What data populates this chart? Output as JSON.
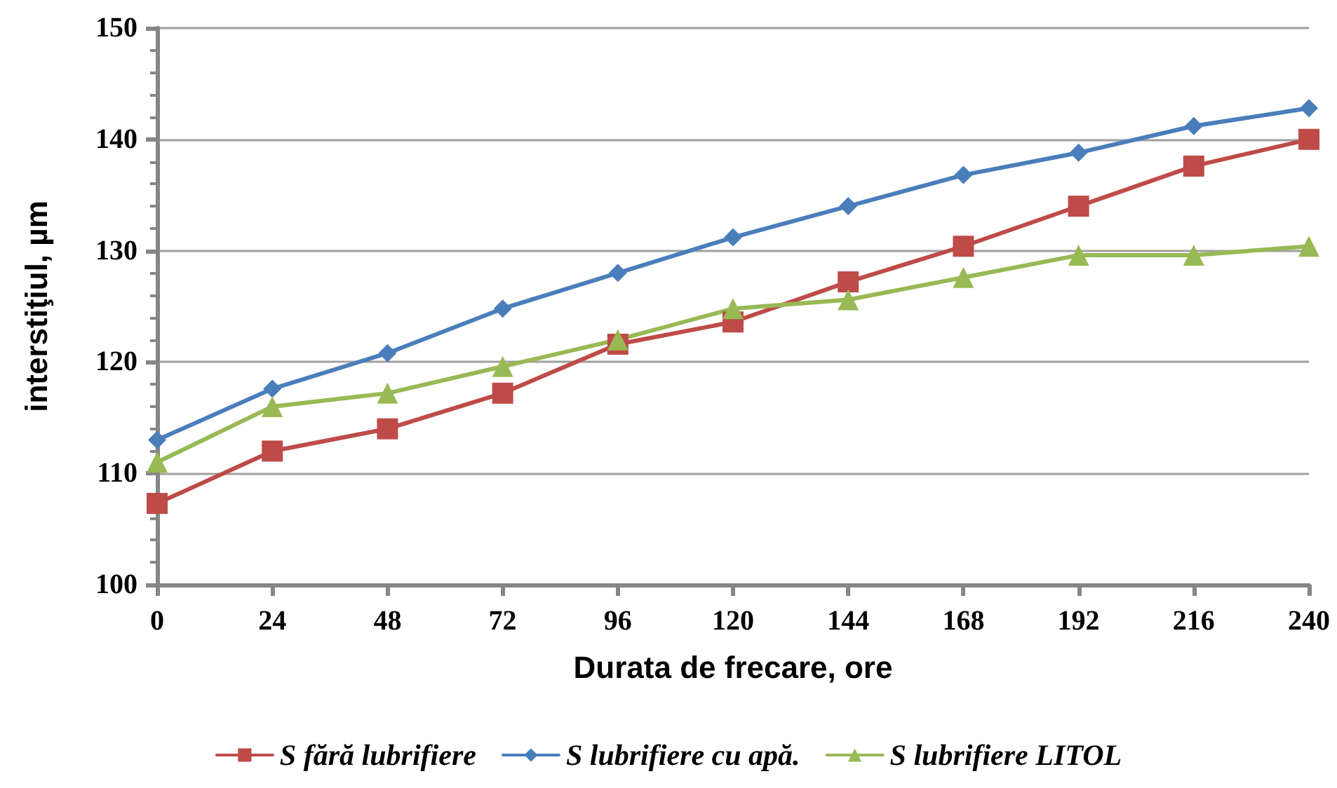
{
  "chart_data": {
    "type": "line",
    "xlabel": "Durata de frecare, ore",
    "ylabel": "interstiţiul, µm",
    "x": [
      0,
      24,
      48,
      72,
      96,
      120,
      144,
      168,
      192,
      216,
      240
    ],
    "series": [
      {
        "name": "S fără lubrifiere",
        "color": "#be4b48",
        "marker": "square",
        "values": [
          107.3,
          112,
          114,
          117.2,
          121.6,
          123.6,
          127.2,
          130.4,
          134,
          137.6,
          140
        ]
      },
      {
        "name": "S lubrifiere cu apă.",
        "color": "#4a7ebb",
        "marker": "diamond",
        "values": [
          113,
          117.6,
          120.8,
          124.8,
          128,
          131.2,
          134,
          136.8,
          138.8,
          141.2,
          142.8
        ]
      },
      {
        "name": "S lubrifiere LITOL",
        "color": "#98b954",
        "marker": "triangle",
        "values": [
          111,
          116,
          117.2,
          119.6,
          122,
          124.8,
          125.6,
          127.6,
          129.6,
          129.6,
          130.4
        ]
      }
    ],
    "xlim": [
      0,
      240
    ],
    "xticks": [
      0,
      24,
      48,
      72,
      96,
      120,
      144,
      168,
      192,
      216,
      240
    ],
    "ylim": [
      100,
      150
    ],
    "yticks": [
      100,
      110,
      120,
      130,
      140,
      150
    ],
    "grid": "y",
    "legend": "bottom"
  }
}
